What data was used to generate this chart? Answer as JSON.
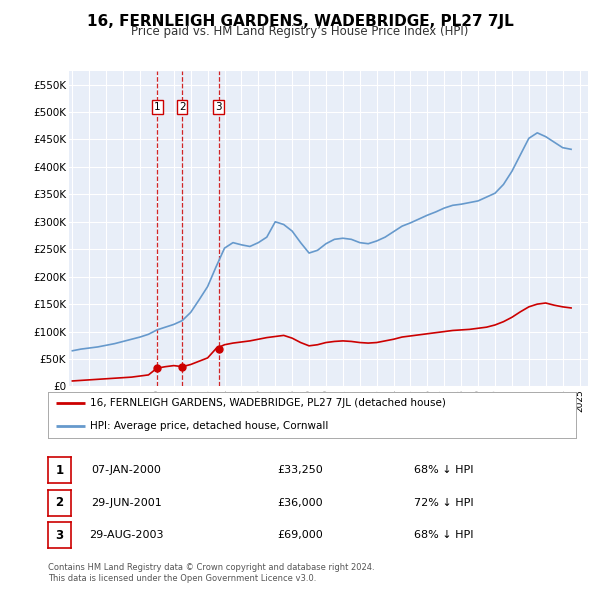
{
  "title": "16, FERNLEIGH GARDENS, WADEBRIDGE, PL27 7JL",
  "subtitle": "Price paid vs. HM Land Registry’s House Price Index (HPI)",
  "title_fontsize": 11,
  "subtitle_fontsize": 8.5,
  "background_color": "#ffffff",
  "plot_bg_color": "#e8eef8",
  "grid_color": "#ffffff",
  "ylim": [
    0,
    575000
  ],
  "yticks": [
    0,
    50000,
    100000,
    150000,
    200000,
    250000,
    300000,
    350000,
    400000,
    450000,
    500000,
    550000
  ],
  "ytick_labels": [
    "£0",
    "£50K",
    "£100K",
    "£150K",
    "£200K",
    "£250K",
    "£300K",
    "£350K",
    "£400K",
    "£450K",
    "£500K",
    "£550K"
  ],
  "xmin": 1994.8,
  "xmax": 2025.5,
  "red_line_color": "#cc0000",
  "blue_line_color": "#6699cc",
  "sale_marker_color": "#cc0000",
  "sale_vline_color": "#cc0000",
  "transactions": [
    {
      "num": 1,
      "year": 2000.03,
      "price": 33250,
      "label": "1"
    },
    {
      "num": 2,
      "year": 2001.49,
      "price": 36000,
      "label": "2"
    },
    {
      "num": 3,
      "year": 2003.66,
      "price": 69000,
      "label": "3"
    }
  ],
  "table_rows": [
    {
      "num": "1",
      "date": "07-JAN-2000",
      "price": "£33,250",
      "pct": "68% ↓ HPI"
    },
    {
      "num": "2",
      "date": "29-JUN-2001",
      "price": "£36,000",
      "pct": "72% ↓ HPI"
    },
    {
      "num": "3",
      "date": "29-AUG-2003",
      "price": "£69,000",
      "pct": "68% ↓ HPI"
    }
  ],
  "legend_label_red": "16, FERNLEIGH GARDENS, WADEBRIDGE, PL27 7JL (detached house)",
  "legend_label_blue": "HPI: Average price, detached house, Cornwall",
  "footer_line1": "Contains HM Land Registry data © Crown copyright and database right 2024.",
  "footer_line2": "This data is licensed under the Open Government Licence v3.0.",
  "hpi_data": {
    "years": [
      1995.0,
      1995.5,
      1996.0,
      1996.5,
      1997.0,
      1997.5,
      1998.0,
      1998.5,
      1999.0,
      1999.5,
      2000.0,
      2000.5,
      2001.0,
      2001.5,
      2002.0,
      2002.5,
      2003.0,
      2003.5,
      2004.0,
      2004.5,
      2005.0,
      2005.5,
      2006.0,
      2006.5,
      2007.0,
      2007.5,
      2008.0,
      2008.5,
      2009.0,
      2009.5,
      2010.0,
      2010.5,
      2011.0,
      2011.5,
      2012.0,
      2012.5,
      2013.0,
      2013.5,
      2014.0,
      2014.5,
      2015.0,
      2015.5,
      2016.0,
      2016.5,
      2017.0,
      2017.5,
      2018.0,
      2018.5,
      2019.0,
      2019.5,
      2020.0,
      2020.5,
      2021.0,
      2021.5,
      2022.0,
      2022.5,
      2023.0,
      2023.5,
      2024.0,
      2024.5
    ],
    "values": [
      65000,
      68000,
      70000,
      72000,
      75000,
      78000,
      82000,
      86000,
      90000,
      95000,
      103000,
      108000,
      113000,
      120000,
      135000,
      158000,
      182000,
      218000,
      252000,
      262000,
      258000,
      255000,
      262000,
      272000,
      300000,
      295000,
      283000,
      262000,
      243000,
      248000,
      260000,
      268000,
      270000,
      268000,
      262000,
      260000,
      265000,
      272000,
      282000,
      292000,
      298000,
      305000,
      312000,
      318000,
      325000,
      330000,
      332000,
      335000,
      338000,
      345000,
      352000,
      368000,
      392000,
      422000,
      452000,
      462000,
      455000,
      445000,
      435000,
      432000
    ]
  },
  "red_data": {
    "years": [
      1995.0,
      1995.5,
      1996.0,
      1996.5,
      1997.0,
      1997.5,
      1998.0,
      1998.5,
      1999.0,
      1999.5,
      2000.0,
      2000.5,
      2001.0,
      2001.5,
      2002.0,
      2002.5,
      2003.0,
      2003.5,
      2004.0,
      2004.5,
      2005.0,
      2005.5,
      2006.0,
      2006.5,
      2007.0,
      2007.5,
      2008.0,
      2008.5,
      2009.0,
      2009.5,
      2010.0,
      2010.5,
      2011.0,
      2011.5,
      2012.0,
      2012.5,
      2013.0,
      2013.5,
      2014.0,
      2014.5,
      2015.0,
      2015.5,
      2016.0,
      2016.5,
      2017.0,
      2017.5,
      2018.0,
      2018.5,
      2019.0,
      2019.5,
      2020.0,
      2020.5,
      2021.0,
      2021.5,
      2022.0,
      2022.5,
      2023.0,
      2023.5,
      2024.0,
      2024.5
    ],
    "values": [
      10000,
      11000,
      12000,
      13000,
      14000,
      15000,
      16000,
      17000,
      19000,
      21000,
      33250,
      36000,
      38000,
      36000,
      40000,
      46000,
      52000,
      69000,
      76000,
      79000,
      81000,
      83000,
      86000,
      89000,
      91000,
      93000,
      88000,
      80000,
      74000,
      76000,
      80000,
      82000,
      83000,
      82000,
      80000,
      79000,
      80000,
      83000,
      86000,
      90000,
      92000,
      94000,
      96000,
      98000,
      100000,
      102000,
      103000,
      104000,
      106000,
      108000,
      112000,
      118000,
      126000,
      136000,
      145000,
      150000,
      152000,
      148000,
      145000,
      143000
    ]
  }
}
